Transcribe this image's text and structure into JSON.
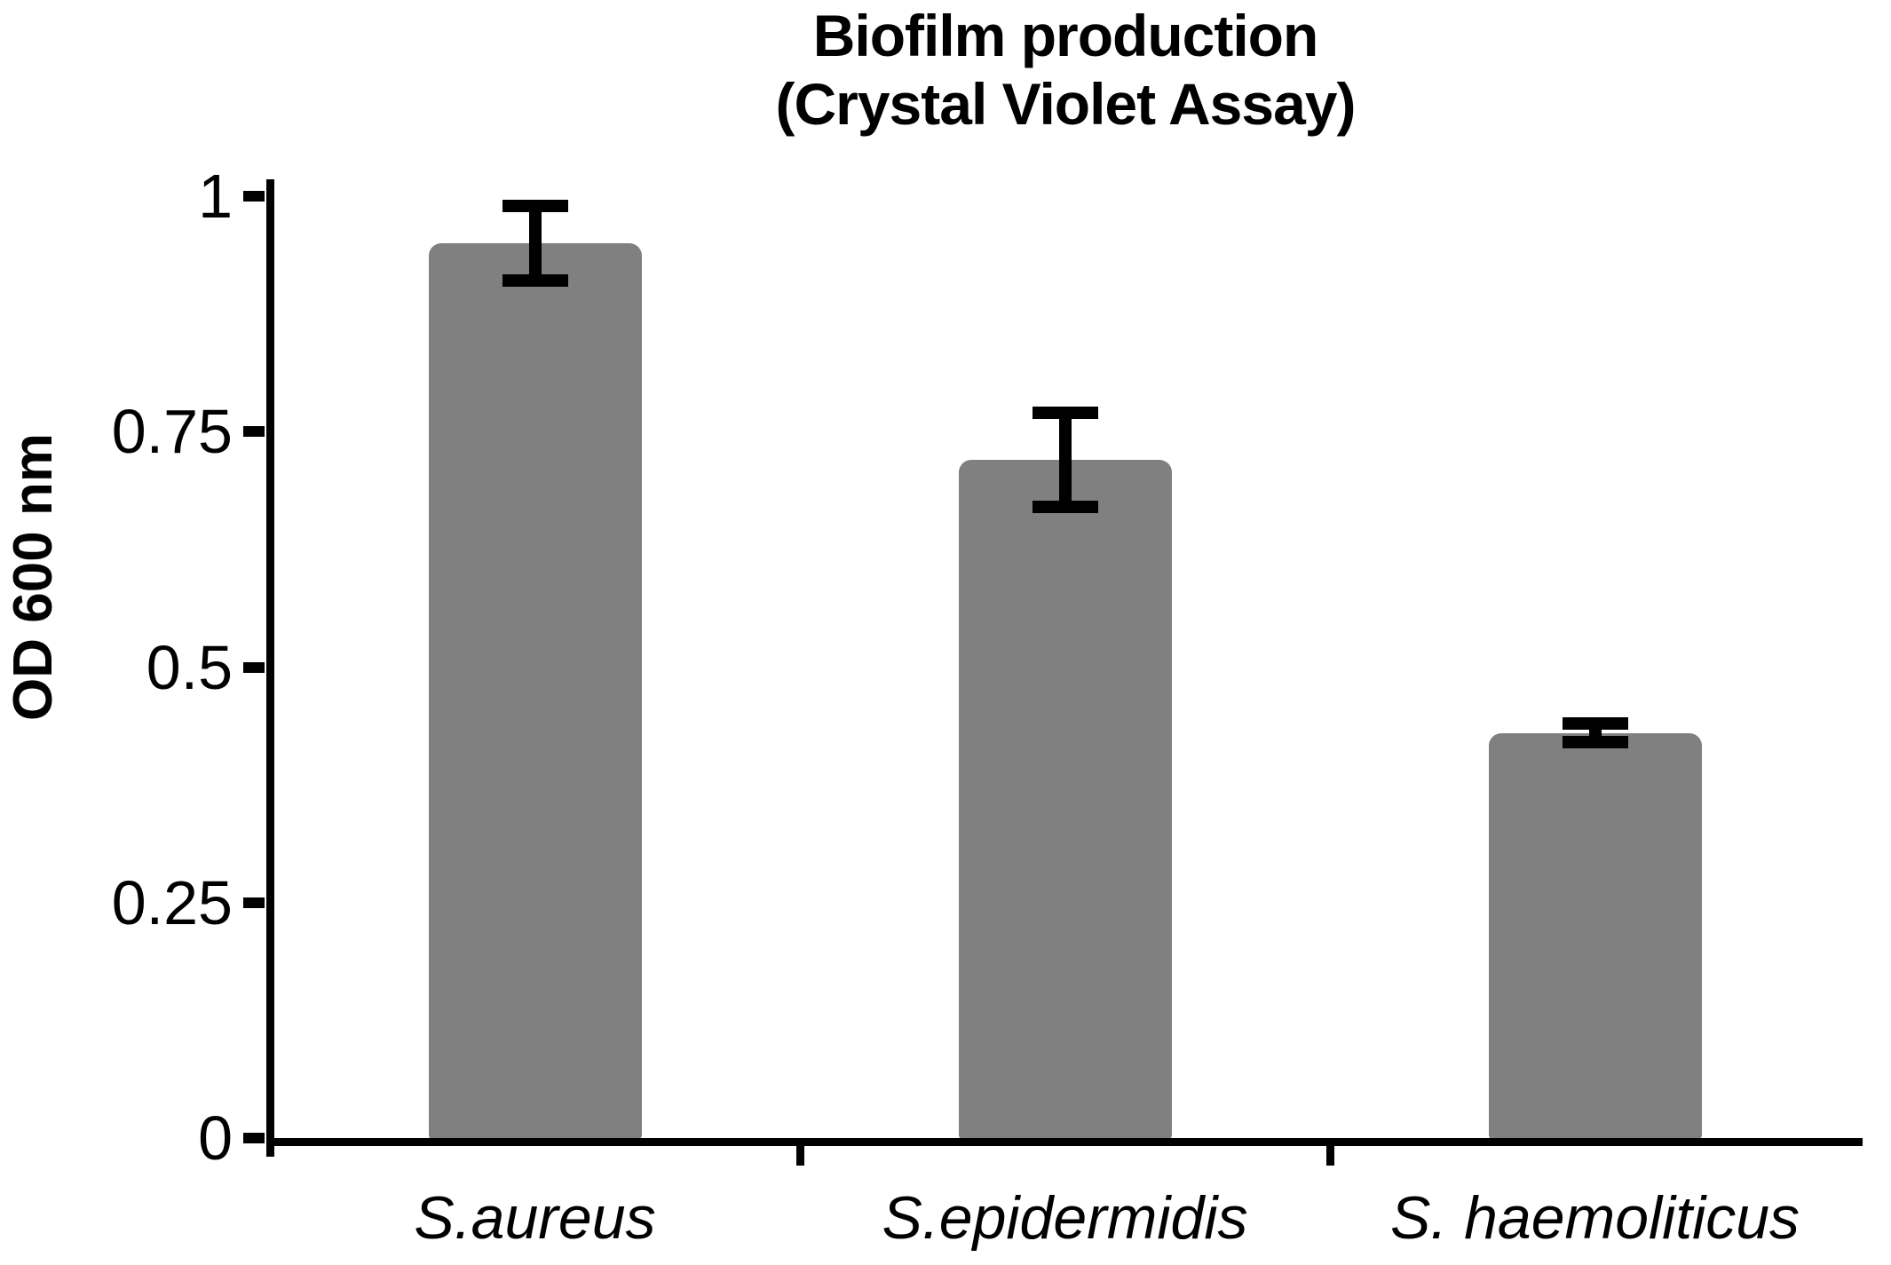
{
  "figure": {
    "title_line1": "Biofilm production",
    "title_line2": "(Crystal Violet Assay)",
    "y_axis_label": "OD 600 nm",
    "background_color": "#ffffff",
    "text_color": "#000000"
  },
  "chart_data": {
    "type": "bar",
    "title": "Biofilm production (Crystal Violet Assay)",
    "ylabel": "OD 600 nm",
    "xlabel": "",
    "categories": [
      "S.aureus",
      "S.epidermidis",
      "S. haemoliticus"
    ],
    "values": [
      0.95,
      0.72,
      0.43
    ],
    "errors": [
      0.04,
      0.05,
      0.01
    ],
    "error_bar_style": "symmetric with caps",
    "ylim": [
      0,
      1
    ],
    "yticks": [
      0,
      0.25,
      0.5,
      0.75,
      1
    ],
    "ytick_labels": [
      "0",
      "0.25",
      "0.5",
      "0.75",
      "1"
    ],
    "bar_color": "#808080",
    "axis_color": "#000000",
    "grid": false,
    "legend_position": "none"
  }
}
